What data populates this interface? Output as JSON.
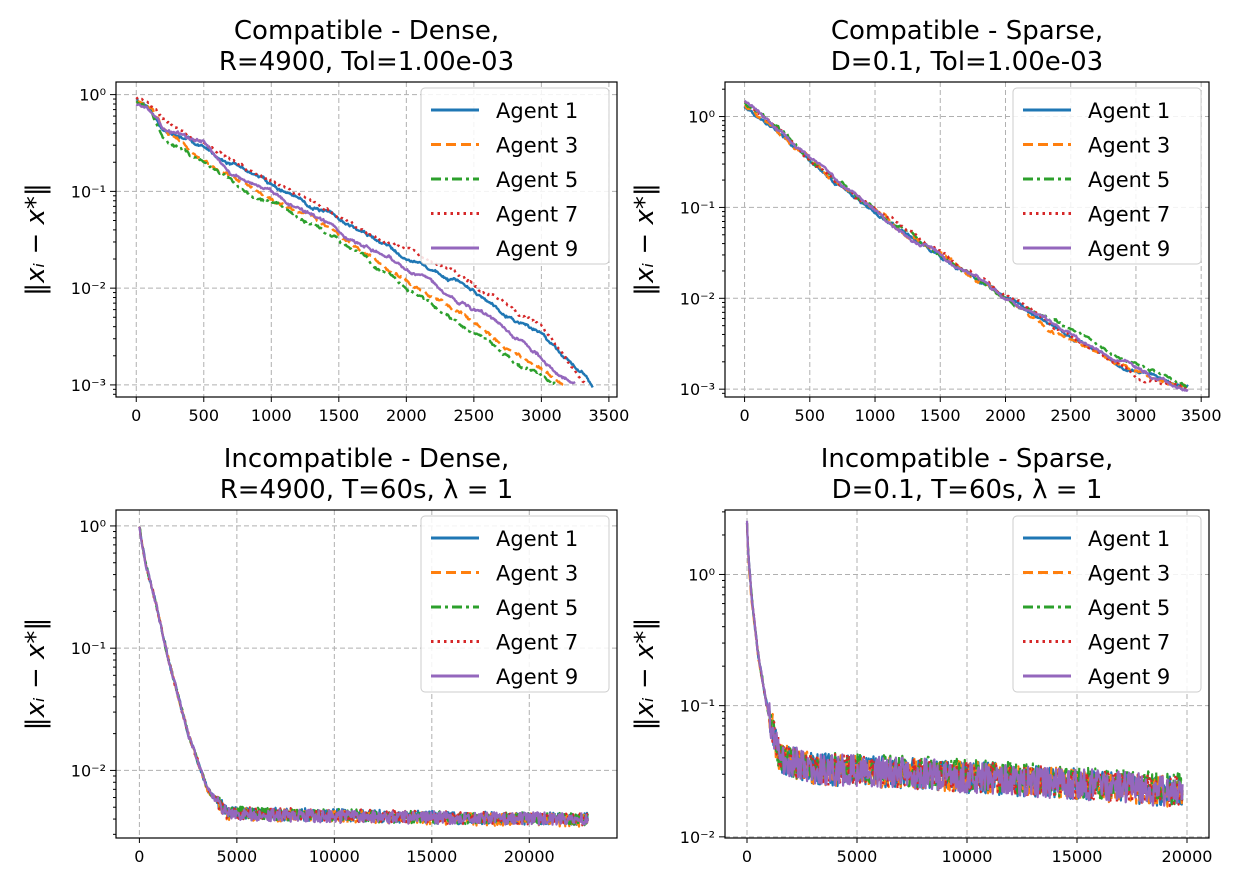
{
  "figure": {
    "series_styles": [
      {
        "name": "Agent 1",
        "color": "#1f77b4",
        "dash": "solid"
      },
      {
        "name": "Agent 3",
        "color": "#ff7f0e",
        "dash": "dashed"
      },
      {
        "name": "Agent 5",
        "color": "#2ca02c",
        "dash": "dashdot"
      },
      {
        "name": "Agent 7",
        "color": "#d62728",
        "dash": "dotted"
      },
      {
        "name": "Agent 9",
        "color": "#9467bd",
        "dash": "solid"
      }
    ]
  },
  "chart_data": [
    {
      "type": "line",
      "title": [
        "Compatible - Dense,",
        "R=4900, Tol=1.00e-03"
      ],
      "xlabel": "",
      "ylabel": "‖xᵢ − x*‖",
      "yscale": "log",
      "xlim": [
        -150,
        3560
      ],
      "ylim": [
        0.00075,
        1.35
      ],
      "xticks": [
        0,
        500,
        1000,
        1500,
        2000,
        2500,
        3000,
        3500
      ],
      "xtick_labels": [
        "0",
        "500",
        "1000",
        "1500",
        "2000",
        "2500",
        "3000",
        "3500"
      ],
      "yticks": [
        0.001,
        0.01,
        0.1,
        1
      ],
      "ytick_labels": [
        "10⁻³",
        "10⁻²",
        "10⁻¹",
        "10⁰"
      ],
      "grid": true,
      "legend_position": "top-right",
      "legend": [
        "Agent 1",
        "Agent 3",
        "Agent 5",
        "Agent 7",
        "Agent 9"
      ],
      "series": [
        {
          "name": "Agent 1",
          "x": [
            0,
            100,
            200,
            500,
            1000,
            1500,
            2000,
            2500,
            3000,
            3300,
            3380
          ],
          "y": [
            0.9,
            0.75,
            0.45,
            0.28,
            0.12,
            0.05,
            0.022,
            0.009,
            0.0035,
            0.0014,
            0.00105
          ]
        },
        {
          "name": "Agent 3",
          "x": [
            0,
            100,
            200,
            500,
            1000,
            1500,
            2000,
            2500,
            2900,
            3180
          ],
          "y": [
            0.85,
            0.7,
            0.42,
            0.2,
            0.085,
            0.033,
            0.012,
            0.0045,
            0.0018,
            0.001
          ]
        },
        {
          "name": "Agent 5",
          "x": [
            0,
            100,
            200,
            500,
            1000,
            1500,
            2000,
            2500,
            2900,
            3100
          ],
          "y": [
            0.85,
            0.7,
            0.4,
            0.2,
            0.08,
            0.028,
            0.01,
            0.0035,
            0.0014,
            0.001
          ]
        },
        {
          "name": "Agent 7",
          "x": [
            0,
            100,
            200,
            500,
            1000,
            1500,
            2000,
            2500,
            3000,
            3340
          ],
          "y": [
            0.95,
            0.85,
            0.55,
            0.28,
            0.12,
            0.055,
            0.024,
            0.011,
            0.0042,
            0.00105
          ]
        },
        {
          "name": "Agent 9",
          "x": [
            0,
            100,
            200,
            500,
            700,
            1000,
            1500,
            2000,
            2500,
            2900,
            3250
          ],
          "y": [
            0.8,
            0.72,
            0.45,
            0.35,
            0.16,
            0.1,
            0.04,
            0.017,
            0.006,
            0.0025,
            0.001
          ]
        }
      ]
    },
    {
      "type": "line",
      "title": [
        "Compatible - Sparse,",
        "D=0.1, Tol=1.00e-03"
      ],
      "xlabel": "",
      "ylabel": "‖xᵢ − x*‖",
      "yscale": "log",
      "xlim": [
        -150,
        3560
      ],
      "ylim": [
        0.00082,
        2.4
      ],
      "xticks": [
        0,
        500,
        1000,
        1500,
        2000,
        2500,
        3000,
        3500
      ],
      "xtick_labels": [
        "0",
        "500",
        "1000",
        "1500",
        "2000",
        "2500",
        "3000",
        "3500"
      ],
      "yticks": [
        0.001,
        0.01,
        0.1,
        1
      ],
      "ytick_labels": [
        "10⁻³",
        "10⁻²",
        "10⁻¹",
        "10⁰"
      ],
      "grid": true,
      "legend_position": "top-right",
      "legend": [
        "Agent 1",
        "Agent 3",
        "Agent 5",
        "Agent 7",
        "Agent 9"
      ],
      "series": [
        {
          "name": "Agent 1",
          "x": [
            0,
            200,
            500,
            1000,
            1500,
            2000,
            2500,
            3000,
            3250,
            3400
          ],
          "y": [
            1.3,
            0.8,
            0.33,
            0.09,
            0.03,
            0.01,
            0.0038,
            0.0016,
            0.0011,
            0.001
          ]
        },
        {
          "name": "Agent 3",
          "x": [
            0,
            200,
            500,
            1000,
            1500,
            2000,
            2500,
            3000,
            3400
          ],
          "y": [
            1.3,
            0.8,
            0.33,
            0.09,
            0.03,
            0.01,
            0.0037,
            0.0016,
            0.001
          ]
        },
        {
          "name": "Agent 5",
          "x": [
            0,
            200,
            500,
            1000,
            1500,
            2000,
            2500,
            3000,
            3400
          ],
          "y": [
            1.4,
            0.85,
            0.34,
            0.092,
            0.031,
            0.011,
            0.0042,
            0.0018,
            0.001
          ]
        },
        {
          "name": "Agent 7",
          "x": [
            0,
            200,
            500,
            1000,
            1500,
            2000,
            2500,
            3000,
            3400
          ],
          "y": [
            1.45,
            0.85,
            0.35,
            0.094,
            0.032,
            0.011,
            0.0039,
            0.0015,
            0.001
          ]
        },
        {
          "name": "Agent 9",
          "x": [
            0,
            200,
            500,
            1000,
            1500,
            2000,
            2500,
            3000,
            3400
          ],
          "y": [
            1.5,
            0.85,
            0.34,
            0.09,
            0.03,
            0.01,
            0.0038,
            0.0016,
            0.001
          ]
        }
      ]
    },
    {
      "type": "line",
      "title": [
        "Incompatible - Dense,",
        "R=4900, T=60s, λ = 1"
      ],
      "xlabel": "",
      "ylabel": "‖xᵢ − x*‖",
      "yscale": "log",
      "xlim": [
        -1200,
        24500
      ],
      "ylim": [
        0.0028,
        1.35
      ],
      "xticks": [
        0,
        5000,
        10000,
        15000,
        20000
      ],
      "xtick_labels": [
        "0",
        "5000",
        "10000",
        "15000",
        "20000"
      ],
      "yticks": [
        0.01,
        0.1,
        1
      ],
      "ytick_labels": [
        "10⁻²",
        "10⁻¹",
        "10⁰"
      ],
      "grid": true,
      "legend_position": "top-right",
      "legend": [
        "Agent 1",
        "Agent 3",
        "Agent 5",
        "Agent 7",
        "Agent 9"
      ],
      "series": [
        {
          "name": "Agent 1",
          "x": [
            0,
            300,
            800,
            1500,
            2500,
            3500,
            4500,
            10000,
            16000,
            23000
          ],
          "y": [
            1.0,
            0.5,
            0.25,
            0.08,
            0.02,
            0.007,
            0.0045,
            0.0043,
            0.0041,
            0.004
          ]
        },
        {
          "name": "Agent 3",
          "x": [
            0,
            300,
            800,
            1500,
            2500,
            3500,
            4500,
            10000,
            16000,
            23000
          ],
          "y": [
            1.0,
            0.5,
            0.25,
            0.08,
            0.02,
            0.007,
            0.0044,
            0.0042,
            0.004,
            0.0039
          ]
        },
        {
          "name": "Agent 5",
          "x": [
            0,
            300,
            800,
            1500,
            2500,
            3500,
            4500,
            10000,
            16000,
            23000
          ],
          "y": [
            1.0,
            0.5,
            0.25,
            0.08,
            0.02,
            0.007,
            0.0045,
            0.0043,
            0.0041,
            0.004
          ]
        },
        {
          "name": "Agent 7",
          "x": [
            0,
            300,
            800,
            1500,
            2500,
            3500,
            4500,
            10000,
            16000,
            23000
          ],
          "y": [
            1.0,
            0.5,
            0.25,
            0.08,
            0.02,
            0.007,
            0.0045,
            0.0043,
            0.0041,
            0.004
          ]
        },
        {
          "name": "Agent 9",
          "x": [
            0,
            300,
            800,
            1500,
            2500,
            3500,
            4500,
            10000,
            16000,
            23000
          ],
          "y": [
            1.0,
            0.5,
            0.25,
            0.08,
            0.02,
            0.007,
            0.0044,
            0.0042,
            0.0041,
            0.004
          ]
        }
      ]
    },
    {
      "type": "line",
      "title": [
        "Incompatible - Sparse,",
        "D=0.1, T=60s, λ = 1"
      ],
      "xlabel": "",
      "ylabel": "‖xᵢ − x*‖",
      "yscale": "log",
      "xlim": [
        -1000,
        21000
      ],
      "ylim": [
        0.0098,
        3.1
      ],
      "xticks": [
        0,
        5000,
        10000,
        15000,
        20000
      ],
      "xtick_labels": [
        "0",
        "5000",
        "10000",
        "15000",
        "20000"
      ],
      "yticks": [
        0.01,
        0.1,
        1
      ],
      "ytick_labels": [
        "10⁻²",
        "10⁻¹",
        "10⁰"
      ],
      "grid": true,
      "legend_position": "top-right",
      "legend": [
        "Agent 1",
        "Agent 3",
        "Agent 5",
        "Agent 7",
        "Agent 9"
      ],
      "series": [
        {
          "name": "Agent 1",
          "x": [
            0,
            50,
            200,
            500,
            900,
            1500,
            3000,
            8000,
            14000,
            19800
          ],
          "y": [
            2.5,
            1.5,
            0.7,
            0.25,
            0.1,
            0.04,
            0.033,
            0.03,
            0.026,
            0.022
          ]
        },
        {
          "name": "Agent 3",
          "x": [
            0,
            50,
            200,
            500,
            900,
            1500,
            3000,
            8000,
            14000,
            19800
          ],
          "y": [
            2.4,
            1.4,
            0.65,
            0.24,
            0.1,
            0.04,
            0.033,
            0.03,
            0.026,
            0.022
          ]
        },
        {
          "name": "Agent 5",
          "x": [
            0,
            50,
            200,
            500,
            900,
            1500,
            3000,
            8000,
            14000,
            19800
          ],
          "y": [
            2.5,
            1.5,
            0.7,
            0.25,
            0.1,
            0.04,
            0.034,
            0.031,
            0.027,
            0.023
          ]
        },
        {
          "name": "Agent 7",
          "x": [
            0,
            50,
            200,
            500,
            900,
            1500,
            3000,
            8000,
            14000,
            19800
          ],
          "y": [
            2.5,
            1.5,
            0.7,
            0.25,
            0.1,
            0.04,
            0.033,
            0.03,
            0.026,
            0.022
          ]
        },
        {
          "name": "Agent 9",
          "x": [
            0,
            50,
            200,
            500,
            900,
            1500,
            3000,
            8000,
            14000,
            19800
          ],
          "y": [
            2.6,
            1.5,
            0.7,
            0.25,
            0.1,
            0.04,
            0.033,
            0.03,
            0.026,
            0.022
          ]
        }
      ]
    }
  ]
}
